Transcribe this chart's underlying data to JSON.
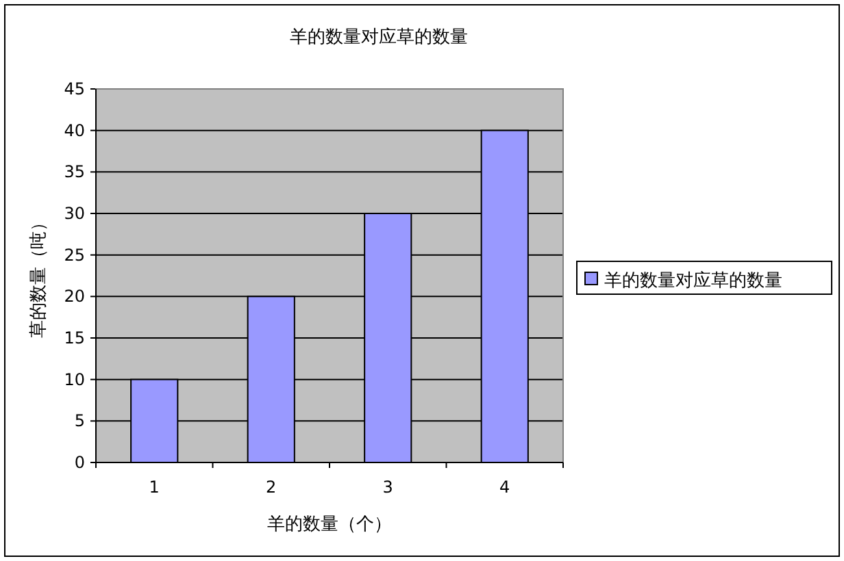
{
  "chart_data": {
    "type": "bar",
    "title": "羊的数量对应草的数量",
    "xlabel": "羊的数量（个）",
    "ylabel": "草的数量（吨）",
    "categories": [
      "1",
      "2",
      "3",
      "4"
    ],
    "series": [
      {
        "name": "羊的数量对应草的数量",
        "color": "#9999ff",
        "values": [
          10,
          20,
          30,
          40
        ]
      }
    ],
    "ylim": [
      0,
      45
    ],
    "yticks": [
      0,
      5,
      10,
      15,
      20,
      25,
      30,
      35,
      40,
      45
    ],
    "grid": "y",
    "legend": "right"
  }
}
